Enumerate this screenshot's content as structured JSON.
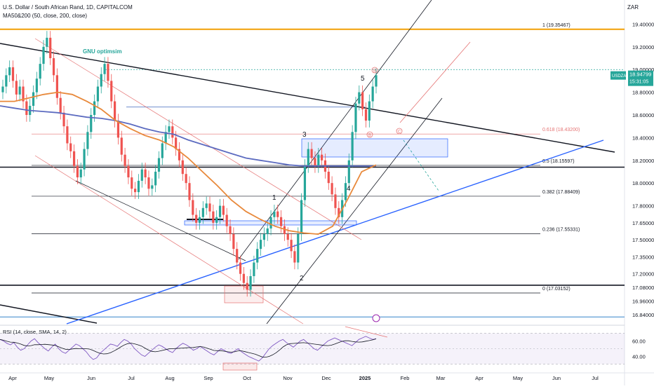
{
  "header": {
    "symbol_line": "U.S. Dollar / South African Rand, 1D, CAPITALCOM",
    "ma_line": "MA50&200 (50, close, 200, close)",
    "currency": "ZAR"
  },
  "rsi": {
    "label": "RSI (14, close, SMA, 14, 2)",
    "ticks": [
      "60.00",
      "40.00"
    ],
    "ylim": [
      25,
      75
    ],
    "values": [
      62,
      60,
      57,
      55,
      58,
      52,
      48,
      50,
      55,
      60,
      63,
      58,
      54,
      50,
      47,
      52,
      56,
      50,
      46,
      44,
      48,
      52,
      56,
      54,
      50,
      46,
      40,
      36,
      38,
      44,
      48,
      52,
      56,
      55,
      53,
      58,
      62,
      60,
      56,
      50,
      46,
      42,
      40,
      44,
      48,
      52,
      55,
      53,
      50,
      47,
      45,
      50,
      54,
      57,
      55,
      52,
      48,
      50,
      53,
      50,
      47,
      44,
      42,
      46,
      50,
      48,
      45,
      44,
      47,
      50,
      46,
      43,
      40,
      38,
      36,
      34,
      38,
      44,
      50,
      54,
      57,
      60,
      62,
      58,
      55,
      52,
      56,
      60,
      62,
      58,
      54,
      50,
      48,
      52,
      56,
      60,
      62,
      64,
      62,
      60,
      58,
      56,
      54,
      58,
      62,
      64,
      66,
      64,
      62,
      63
    ]
  },
  "labels": {
    "annotation": "GNU optimsim",
    "waves": [
      "1",
      "2",
      "3",
      "4",
      "5"
    ],
    "circles": [
      "B",
      "B",
      "C"
    ]
  },
  "price_tag": {
    "symbol": "USDZAR",
    "price": "18.94799",
    "countdown": "15:31:05"
  },
  "chart_data": {
    "type": "candlestick",
    "title": "U.S. Dollar / South African Rand, 1D, CAPITALCOM",
    "ylim": [
      16.76,
      19.52
    ],
    "y_ticks": [
      "19.40000",
      "19.20000",
      "19.00000",
      "18.80000",
      "18.60000",
      "18.40000",
      "18.20000",
      "18.00000",
      "17.80000",
      "17.65000",
      "17.50000",
      "17.35000",
      "17.20000",
      "17.08000",
      "16.96000",
      "16.84000"
    ],
    "x_ticks": [
      "Apr",
      "May",
      "Jun",
      "Jul",
      "Aug",
      "Sep",
      "Oct",
      "Nov",
      "Dec",
      "2025",
      "Feb",
      "Mar",
      "Apr",
      "May",
      "Jun",
      "Jul"
    ],
    "fib_levels": [
      {
        "label": "1 (19.35467)",
        "value": 19.35467
      },
      {
        "label": "0.618 (18.43200)",
        "value": 18.432
      },
      {
        "label": "0.5 (18.15597)",
        "value": 18.15597
      },
      {
        "label": "0.382 (17.88409)",
        "value": 17.88409
      },
      {
        "label": "0.236 (17.55331)",
        "value": 17.55331
      },
      {
        "label": "0 (17.03152)",
        "value": 17.03152
      }
    ],
    "close_series": [
      18.85,
      18.95,
      19.02,
      18.9,
      18.78,
      18.85,
      18.72,
      18.6,
      18.68,
      18.8,
      18.92,
      19.05,
      19.2,
      19.28,
      19.1,
      18.95,
      18.75,
      18.62,
      18.5,
      18.35,
      18.28,
      18.15,
      18.05,
      18.12,
      18.3,
      18.45,
      18.6,
      18.72,
      18.85,
      18.96,
      19.05,
      18.9,
      18.72,
      18.55,
      18.4,
      18.25,
      18.15,
      18.05,
      17.95,
      17.92,
      18.02,
      18.12,
      18.05,
      17.95,
      17.98,
      18.1,
      18.22,
      18.35,
      18.45,
      18.5,
      18.4,
      18.3,
      18.2,
      18.08,
      18.0,
      17.85,
      17.72,
      17.65,
      17.7,
      17.78,
      17.82,
      17.75,
      17.65,
      17.7,
      17.8,
      17.72,
      17.62,
      17.55,
      17.42,
      17.3,
      17.2,
      17.12,
      17.06,
      17.18,
      17.3,
      17.42,
      17.5,
      17.55,
      17.6,
      17.7,
      17.75,
      17.7,
      17.62,
      17.55,
      17.5,
      17.4,
      17.3,
      17.55,
      17.85,
      18.15,
      18.3,
      18.22,
      18.15,
      18.25,
      18.2,
      18.1,
      18.0,
      17.9,
      17.78,
      17.7,
      17.85,
      18.0,
      18.2,
      18.45,
      18.7,
      18.8,
      18.65,
      18.55,
      18.72,
      18.85,
      18.95
    ],
    "ma50": [
      18.72,
      18.72,
      18.75,
      18.78,
      18.8,
      18.78,
      18.72,
      18.65,
      18.55,
      18.48,
      18.42,
      18.38,
      18.32,
      18.22,
      18.1,
      17.98,
      17.85,
      17.75,
      17.68,
      17.62,
      17.58,
      17.56,
      17.55,
      17.62,
      17.85,
      18.1,
      18.16
    ],
    "ma200": [
      18.68,
      18.66,
      18.64,
      18.63,
      18.62,
      18.6,
      18.58,
      18.57,
      18.55,
      18.52,
      18.48,
      18.45,
      18.43,
      18.38,
      18.34,
      18.3,
      18.26,
      18.22,
      18.2,
      18.18,
      18.16,
      18.15,
      18.15,
      18.15,
      18.15,
      18.15,
      18.15
    ]
  }
}
